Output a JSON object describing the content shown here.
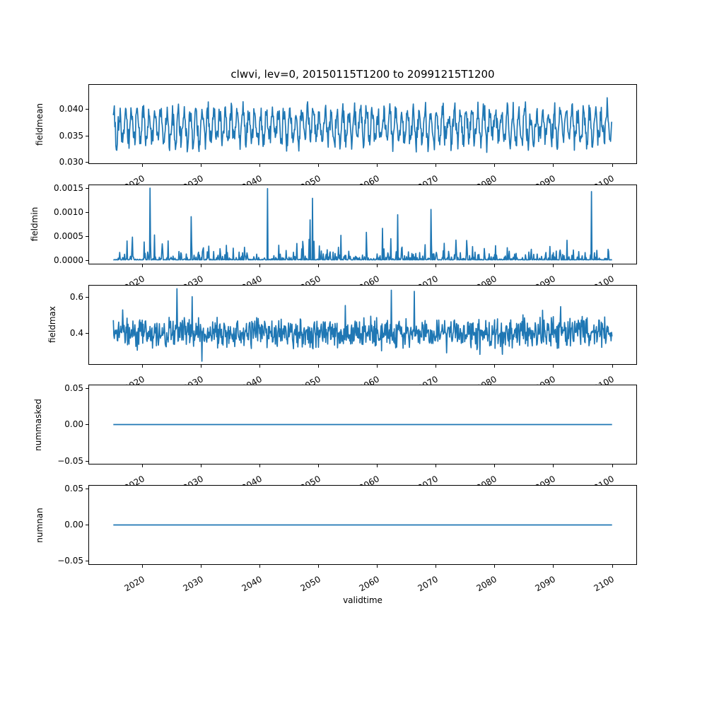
{
  "figure": {
    "title": "clwvi, lev=0, 20150115T1200 to 20991215T1200",
    "xlabel": "validtime",
    "background": "#ffffff",
    "line_color": "#1f77b4",
    "frame_color": "#000000",
    "tick_rotation_deg": 30,
    "xlim": [
      2010.79,
      2104.21
    ],
    "x_start": 2015.042,
    "x_end": 2099.958,
    "n_points": 1020,
    "xticks": {
      "values": [
        2020,
        2030,
        2040,
        2050,
        2060,
        2070,
        2080,
        2090,
        2100
      ],
      "labels": [
        "2020",
        "2030",
        "2040",
        "2050",
        "2060",
        "2070",
        "2080",
        "2090",
        "2100"
      ]
    }
  },
  "chart_data": [
    {
      "type": "line",
      "name": "fieldmean",
      "ylabel": "fieldmean",
      "grid": false,
      "legend": "none",
      "ylim": [
        0.0297,
        0.0447
      ],
      "yticks": {
        "values": [
          0.04,
          0.035,
          0.03
        ],
        "labels": [
          "0.040",
          "0.035",
          "0.030"
        ]
      },
      "approx_value_range": [
        0.0303,
        0.0441
      ],
      "description": "dense monthly series, annual cycle plus noise around mean 0.0368",
      "gen": {
        "kind": "seasonal_noise",
        "mean": 0.0368,
        "season_amp": 0.0027,
        "noise_amp": 0.0027,
        "phase": 2.0,
        "rare_prob": 0.003,
        "rare_amp": 0.002,
        "clamp": [
          0.0303,
          0.0441
        ],
        "seed": 101
      }
    },
    {
      "type": "line",
      "name": "fieldmin",
      "ylabel": "fieldmin",
      "grid": false,
      "legend": "none",
      "ylim": [
        -7.55e-05,
        0.0015855
      ],
      "yticks": {
        "values": [
          0.0015,
          0.001,
          0.0005,
          0.0
        ],
        "labels": [
          "0.0015",
          "0.0010",
          "0.0005",
          "0.0000"
        ]
      },
      "approx_value_range": [
        0.0,
        0.00153
      ],
      "description": "baseline near zero with seasonal clusters of small spikes and rare tall spikes up to ~0.0015",
      "gen": {
        "kind": "spikes",
        "base": 2e-05,
        "small_amp": 0.00048,
        "small_pow": 6,
        "tall_prob": 0.01,
        "tall_base": 0.0003,
        "tall_amp": 0.0012,
        "clamp": [
          0.0,
          0.00151
        ],
        "seed": 202
      }
    },
    {
      "type": "line",
      "name": "fieldmax",
      "ylabel": "fieldmax",
      "grid": false,
      "legend": "none",
      "ylim": [
        0.2301,
        0.6679
      ],
      "yticks": {
        "values": [
          0.6,
          0.4
        ],
        "labels": [
          "0.6",
          "0.4"
        ]
      },
      "approx_value_range": [
        0.25,
        0.655
      ],
      "description": "noisy series around 0.40 with occasional excursions to ~0.65 and ~0.25",
      "gen": {
        "kind": "noise",
        "mean": 0.405,
        "amp": 0.095,
        "up_prob": 0.012,
        "up_base": 0.05,
        "up_amp": 0.19,
        "down_prob": 0.012,
        "down_base": 0.05,
        "down_amp": 0.12,
        "clamp": [
          0.25,
          0.655
        ],
        "seed": 303
      }
    },
    {
      "type": "line",
      "name": "nummasked",
      "ylabel": "nummasked",
      "grid": false,
      "legend": "none",
      "ylim": [
        -0.055,
        0.055
      ],
      "yticks": {
        "values": [
          0.05,
          0.0,
          -0.05
        ],
        "labels": [
          "0.05",
          "0.00",
          "−0.05"
        ]
      },
      "approx_value_range": [
        0,
        0
      ],
      "description": "constant zero line",
      "gen": {
        "kind": "constant",
        "value": 0,
        "seed": 1
      }
    },
    {
      "type": "line",
      "name": "numnan",
      "ylabel": "numnan",
      "grid": false,
      "legend": "none",
      "ylim": [
        -0.055,
        0.055
      ],
      "yticks": {
        "values": [
          0.05,
          0.0,
          -0.05
        ],
        "labels": [
          "0.05",
          "0.00",
          "−0.05"
        ]
      },
      "approx_value_range": [
        0,
        0
      ],
      "description": "constant zero line",
      "gen": {
        "kind": "constant",
        "value": 0,
        "seed": 1
      }
    }
  ]
}
